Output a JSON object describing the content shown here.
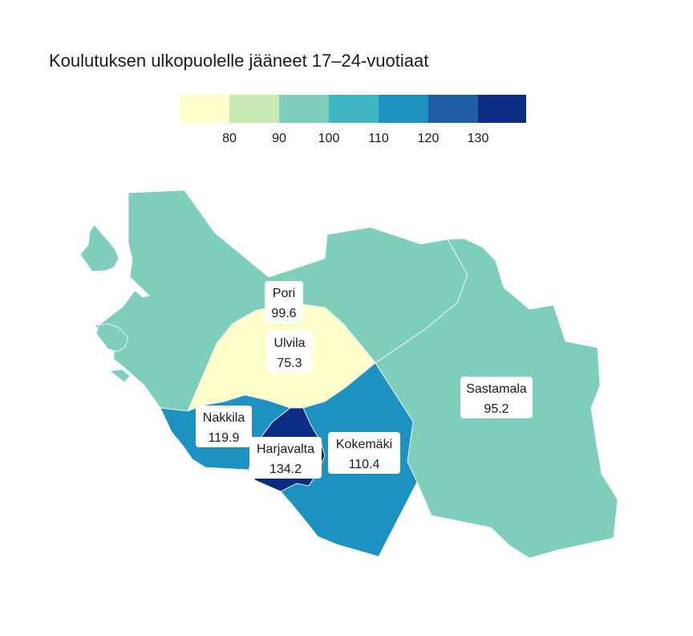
{
  "title": "Koulutuksen ulkopuolelle jääneet 17–24-vuotiaat",
  "legend": {
    "colors": [
      "#ffffcc",
      "#c7e9b4",
      "#7fcdbb",
      "#41b6c4",
      "#1d91c0",
      "#225ea8",
      "#0c2c84"
    ],
    "ticks": [
      "80",
      "90",
      "100",
      "110",
      "120",
      "130"
    ]
  },
  "regions": [
    {
      "name": "Pori",
      "value": "99.6",
      "color": "#7fcdbb"
    },
    {
      "name": "Ulvila",
      "value": "75.3",
      "color": "#ffffcc"
    },
    {
      "name": "Nakkila",
      "value": "119.9",
      "color": "#1d91c0"
    },
    {
      "name": "Harjavalta",
      "value": "134.2",
      "color": "#0c2c84"
    },
    {
      "name": "Kokemäki",
      "value": "110.4",
      "color": "#1d91c0"
    },
    {
      "name": "Sastamala",
      "value": "95.2",
      "color": "#7fcdbb"
    }
  ]
}
